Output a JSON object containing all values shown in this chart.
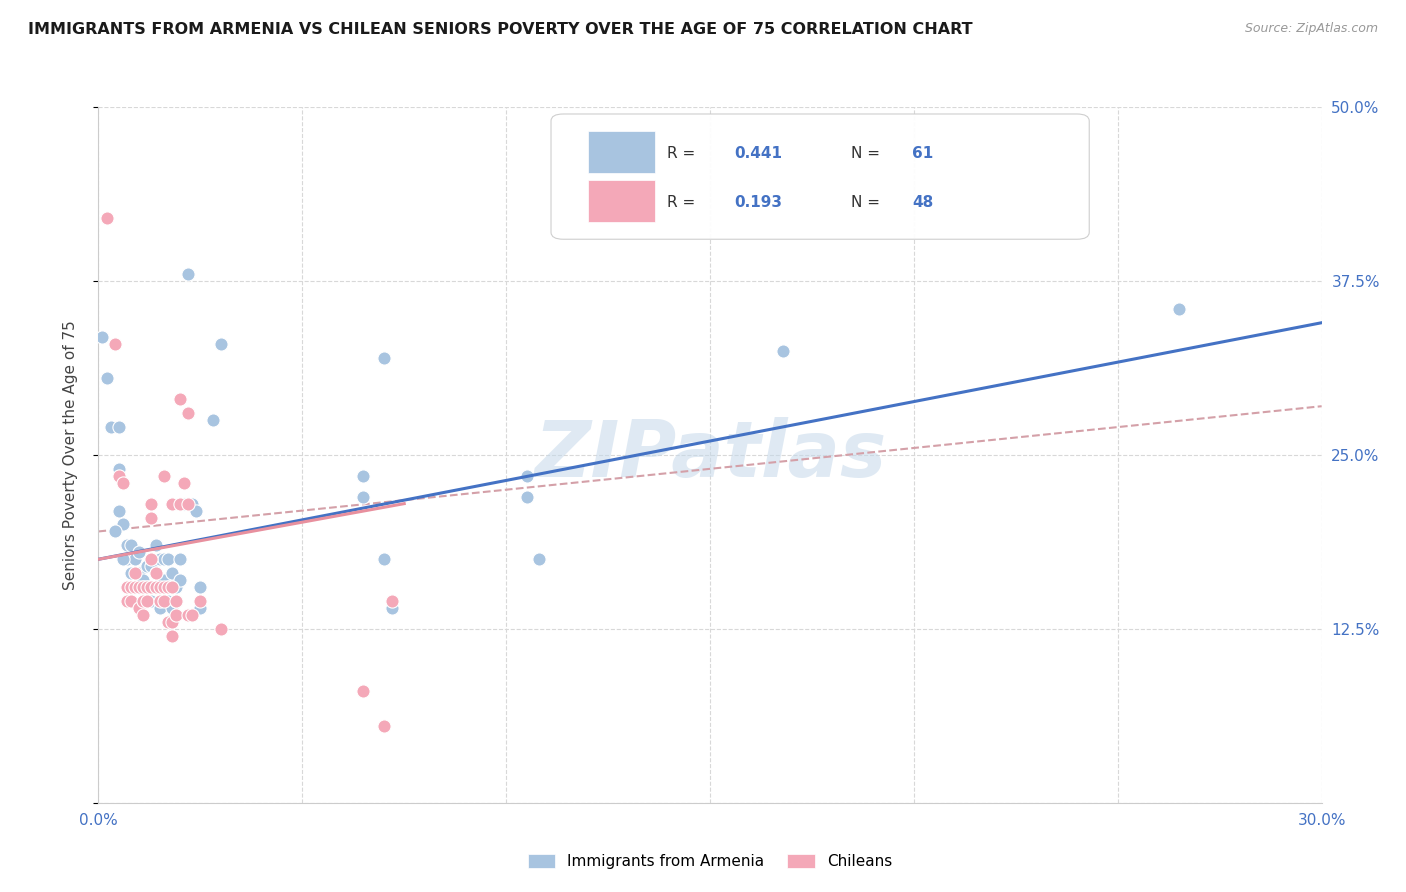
{
  "title": "IMMIGRANTS FROM ARMENIA VS CHILEAN SENIORS POVERTY OVER THE AGE OF 75 CORRELATION CHART",
  "source": "Source: ZipAtlas.com",
  "ylabel": "Seniors Poverty Over the Age of 75",
  "xlim": [
    0.0,
    0.3
  ],
  "ylim": [
    0.0,
    0.5
  ],
  "xticks": [
    0.0,
    0.05,
    0.1,
    0.15,
    0.2,
    0.25,
    0.3
  ],
  "xtick_labels": [
    "0.0%",
    "",
    "",
    "",
    "",
    "",
    "30.0%"
  ],
  "yticks": [
    0.0,
    0.125,
    0.25,
    0.375,
    0.5
  ],
  "ytick_labels": [
    "",
    "12.5%",
    "25.0%",
    "37.5%",
    "50.0%"
  ],
  "blue_R": 0.441,
  "blue_N": 61,
  "pink_R": 0.193,
  "pink_N": 48,
  "blue_color": "#a8c4e0",
  "pink_color": "#f4a8b8",
  "blue_line_color": "#4472c4",
  "pink_solid_color": "#e8909e",
  "pink_dash_color": "#d4a0a8",
  "legend_labels": [
    "Immigrants from Armenia",
    "Chileans"
  ],
  "blue_scatter": [
    [
      0.001,
      0.335
    ],
    [
      0.002,
      0.305
    ],
    [
      0.003,
      0.27
    ],
    [
      0.005,
      0.27
    ],
    [
      0.005,
      0.24
    ],
    [
      0.005,
      0.21
    ],
    [
      0.006,
      0.2
    ],
    [
      0.007,
      0.175
    ],
    [
      0.007,
      0.185
    ],
    [
      0.008,
      0.185
    ],
    [
      0.008,
      0.165
    ],
    [
      0.009,
      0.175
    ],
    [
      0.009,
      0.155
    ],
    [
      0.01,
      0.18
    ],
    [
      0.01,
      0.165
    ],
    [
      0.011,
      0.16
    ],
    [
      0.011,
      0.155
    ],
    [
      0.012,
      0.17
    ],
    [
      0.012,
      0.155
    ],
    [
      0.013,
      0.17
    ],
    [
      0.013,
      0.155
    ],
    [
      0.013,
      0.145
    ],
    [
      0.014,
      0.185
    ],
    [
      0.014,
      0.165
    ],
    [
      0.014,
      0.155
    ],
    [
      0.015,
      0.175
    ],
    [
      0.015,
      0.155
    ],
    [
      0.015,
      0.14
    ],
    [
      0.016,
      0.175
    ],
    [
      0.016,
      0.16
    ],
    [
      0.017,
      0.175
    ],
    [
      0.017,
      0.155
    ],
    [
      0.017,
      0.145
    ],
    [
      0.018,
      0.165
    ],
    [
      0.018,
      0.155
    ],
    [
      0.018,
      0.14
    ],
    [
      0.019,
      0.155
    ],
    [
      0.019,
      0.145
    ],
    [
      0.02,
      0.175
    ],
    [
      0.02,
      0.16
    ],
    [
      0.021,
      0.215
    ],
    [
      0.022,
      0.38
    ],
    [
      0.022,
      0.28
    ],
    [
      0.023,
      0.215
    ],
    [
      0.024,
      0.21
    ],
    [
      0.025,
      0.155
    ],
    [
      0.025,
      0.14
    ],
    [
      0.028,
      0.275
    ],
    [
      0.03,
      0.33
    ],
    [
      0.065,
      0.235
    ],
    [
      0.065,
      0.22
    ],
    [
      0.07,
      0.32
    ],
    [
      0.07,
      0.175
    ],
    [
      0.072,
      0.14
    ],
    [
      0.105,
      0.235
    ],
    [
      0.105,
      0.22
    ],
    [
      0.108,
      0.175
    ],
    [
      0.168,
      0.325
    ],
    [
      0.265,
      0.355
    ],
    [
      0.004,
      0.195
    ],
    [
      0.006,
      0.175
    ]
  ],
  "pink_scatter": [
    [
      0.002,
      0.42
    ],
    [
      0.004,
      0.33
    ],
    [
      0.005,
      0.235
    ],
    [
      0.006,
      0.23
    ],
    [
      0.007,
      0.155
    ],
    [
      0.007,
      0.145
    ],
    [
      0.008,
      0.155
    ],
    [
      0.008,
      0.145
    ],
    [
      0.009,
      0.165
    ],
    [
      0.009,
      0.155
    ],
    [
      0.01,
      0.155
    ],
    [
      0.01,
      0.14
    ],
    [
      0.011,
      0.155
    ],
    [
      0.011,
      0.145
    ],
    [
      0.011,
      0.135
    ],
    [
      0.012,
      0.155
    ],
    [
      0.012,
      0.145
    ],
    [
      0.013,
      0.215
    ],
    [
      0.013,
      0.205
    ],
    [
      0.013,
      0.175
    ],
    [
      0.013,
      0.155
    ],
    [
      0.014,
      0.165
    ],
    [
      0.014,
      0.155
    ],
    [
      0.015,
      0.155
    ],
    [
      0.015,
      0.145
    ],
    [
      0.016,
      0.235
    ],
    [
      0.016,
      0.155
    ],
    [
      0.016,
      0.145
    ],
    [
      0.017,
      0.155
    ],
    [
      0.017,
      0.13
    ],
    [
      0.018,
      0.215
    ],
    [
      0.018,
      0.155
    ],
    [
      0.018,
      0.13
    ],
    [
      0.018,
      0.12
    ],
    [
      0.019,
      0.145
    ],
    [
      0.019,
      0.135
    ],
    [
      0.02,
      0.29
    ],
    [
      0.02,
      0.215
    ],
    [
      0.021,
      0.23
    ],
    [
      0.022,
      0.28
    ],
    [
      0.022,
      0.215
    ],
    [
      0.022,
      0.135
    ],
    [
      0.023,
      0.135
    ],
    [
      0.025,
      0.145
    ],
    [
      0.03,
      0.125
    ],
    [
      0.065,
      0.08
    ],
    [
      0.07,
      0.055
    ],
    [
      0.072,
      0.145
    ]
  ],
  "blue_line": [
    [
      0.0,
      0.175
    ],
    [
      0.3,
      0.345
    ]
  ],
  "pink_solid_line": [
    [
      0.0,
      0.175
    ],
    [
      0.075,
      0.215
    ]
  ],
  "pink_dash_line": [
    [
      0.0,
      0.195
    ],
    [
      0.3,
      0.285
    ]
  ],
  "background_color": "#ffffff",
  "grid_color": "#d8d8d8",
  "tick_color": "#4472c4",
  "watermark": "ZIPatlas"
}
